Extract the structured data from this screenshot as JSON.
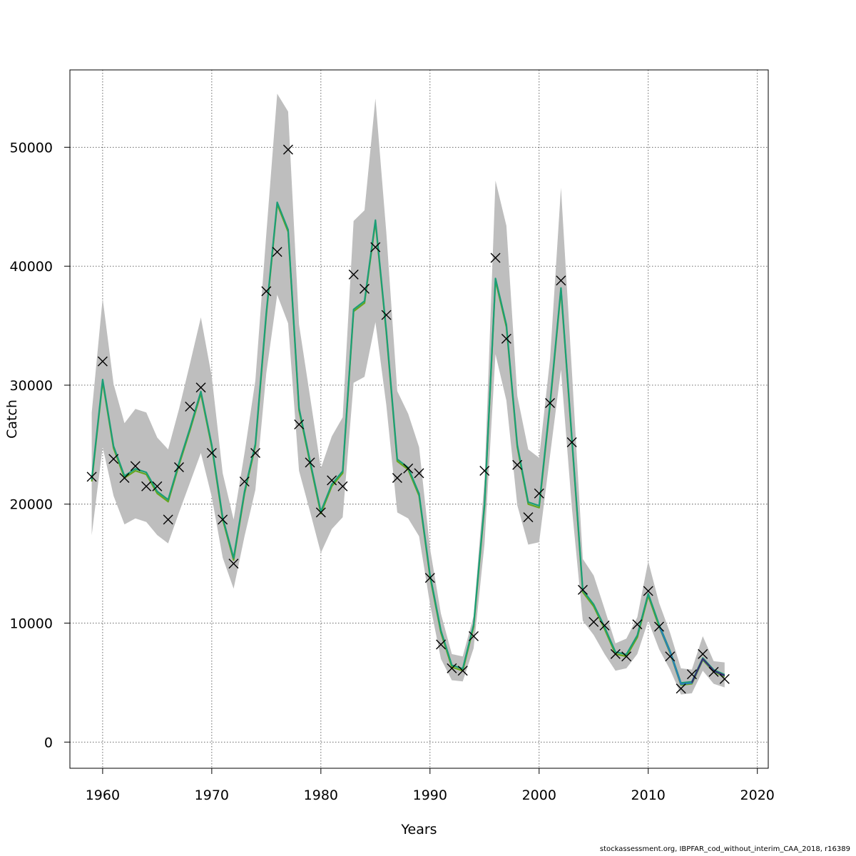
{
  "chart_data": {
    "type": "line",
    "xlabel": "Years",
    "ylabel": "Catch",
    "xlim": [
      1957,
      2021
    ],
    "ylim": [
      -2200,
      56500
    ],
    "x_ticks": [
      1960,
      1970,
      1980,
      1990,
      2000,
      2010,
      2020
    ],
    "y_ticks": [
      0,
      10000,
      20000,
      30000,
      40000,
      50000
    ],
    "grid": true,
    "years": [
      1959,
      1960,
      1961,
      1962,
      1963,
      1964,
      1965,
      1966,
      1967,
      1968,
      1969,
      1970,
      1971,
      1972,
      1973,
      1974,
      1975,
      1976,
      1977,
      1978,
      1979,
      1980,
      1981,
      1982,
      1983,
      1984,
      1985,
      1986,
      1987,
      1988,
      1989,
      1990,
      1991,
      1992,
      1993,
      1994,
      1995,
      1996,
      1997,
      1998,
      1999,
      2000,
      2001,
      2002,
      2003,
      2004,
      2005,
      2006,
      2007,
      2008,
      2009,
      2010,
      2011,
      2012,
      2013,
      2014,
      2015,
      2016,
      2017
    ],
    "fitted": [
      22000,
      30400,
      24800,
      22300,
      22900,
      22600,
      21000,
      20300,
      23400,
      26300,
      29400,
      24900,
      18800,
      15400,
      21000,
      25000,
      36000,
      45300,
      43000,
      28000,
      23600,
      19300,
      21600,
      22700,
      36300,
      37000,
      43800,
      34500,
      23700,
      23000,
      20800,
      14000,
      9300,
      6400,
      6100,
      9800,
      20000,
      38900,
      35000,
      24900,
      20100,
      19800,
      28400,
      38100,
      25500,
      12700,
      11500,
      9600,
      7500,
      7300,
      8900,
      12400,
      9800,
      7600,
      4900,
      5000,
      7000,
      6000,
      5600
    ],
    "ci_lower": [
      17400,
      24800,
      20700,
      18300,
      18800,
      18500,
      17400,
      16700,
      19300,
      21800,
      24300,
      20600,
      15500,
      12900,
      17300,
      21200,
      31000,
      37600,
      35200,
      22800,
      19400,
      15900,
      17900,
      18900,
      30200,
      30700,
      35300,
      28300,
      19300,
      18800,
      17300,
      11600,
      7000,
      5200,
      5100,
      7900,
      16700,
      32600,
      28700,
      19900,
      16600,
      16800,
      24100,
      31300,
      19700,
      10200,
      9000,
      7400,
      6000,
      6200,
      7400,
      10200,
      7800,
      6100,
      4000,
      4100,
      6000,
      4900,
      4600
    ],
    "ci_upper": [
      27700,
      37300,
      30100,
      26800,
      28000,
      27700,
      25600,
      24600,
      28000,
      31800,
      35700,
      30700,
      22600,
      18700,
      24300,
      30400,
      42700,
      54500,
      53000,
      35100,
      29100,
      23000,
      25700,
      27300,
      43800,
      44700,
      54100,
      42800,
      29500,
      27600,
      24800,
      16300,
      10800,
      7400,
      7200,
      10600,
      22100,
      47200,
      43400,
      29100,
      24600,
      23900,
      32200,
      46600,
      31200,
      15400,
      14000,
      11200,
      8300,
      8700,
      10500,
      15200,
      11700,
      9200,
      6200,
      6100,
      8900,
      6800,
      6700
    ],
    "observed": [
      22300,
      32000,
      23800,
      22200,
      23200,
      21500,
      21500,
      18700,
      23100,
      28200,
      29800,
      24300,
      18700,
      15000,
      21900,
      24300,
      37900,
      41200,
      49800,
      26700,
      23500,
      19300,
      22000,
      21500,
      39300,
      38100,
      41600,
      35900,
      22200,
      23000,
      22600,
      13800,
      8200,
      6200,
      6000,
      8900,
      22800,
      40700,
      33900,
      23300,
      18900,
      20900,
      28500,
      38800,
      25200,
      12800,
      10100,
      9800,
      7400,
      7200,
      9900,
      12700,
      9700,
      7200,
      4500,
      5700,
      7400,
      5900,
      5300
    ],
    "series": [
      {
        "name": "",
        "color": "#66A61E"
      },
      {
        "name": "",
        "color": "#1B9E77"
      },
      {
        "name": "",
        "color": "#2C7FB8"
      },
      {
        "name": "",
        "color": "#3B2A6E"
      }
    ],
    "band_color": "#BEBEBE",
    "marker": "x"
  },
  "footer": "stockassessment.org, IBPFAR_cod_without_interim_CAA_2018, r16389"
}
